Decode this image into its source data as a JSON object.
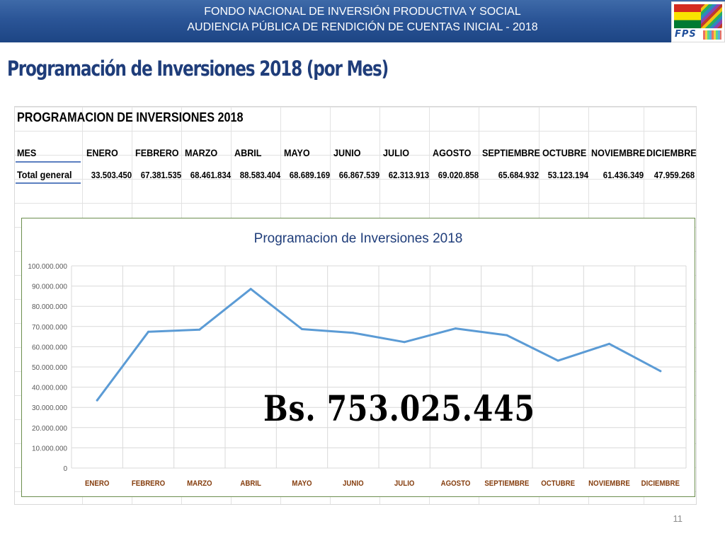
{
  "header": {
    "line1": "FONDO NACIONAL DE INVERSIÓN PRODUCTIVA Y SOCIAL",
    "line2": "AUDIENCIA PÚBLICA DE RENDICIÓN DE CUENTAS INICIAL - 2018",
    "logo_text": "FPS"
  },
  "slide_title": "Programación de Inversiones 2018 (por Mes)",
  "table": {
    "title": "PROGRAMACION DE INVERSIONES 2018",
    "row_label_header": "MES",
    "row_label_total": "Total general",
    "months": [
      "ENERO",
      "FEBRERO",
      "MARZO",
      "ABRIL",
      "MAYO",
      "JUNIO",
      "JULIO",
      "AGOSTO",
      "SEPTIEMBRE",
      "OCTUBRE",
      "NOVIEMBRE",
      "DICIEMBRE"
    ],
    "values": [
      "33.503.450",
      "67.381.535",
      "68.461.834",
      "88.583.404",
      "68.689.169",
      "66.867.539",
      "62.313.913",
      "69.020.858",
      "65.684.932",
      "53.123.194",
      "61.436.349",
      "47.959.268"
    ]
  },
  "chart_data": {
    "type": "line",
    "title": "Programacion  de Inversiones 2018",
    "categories": [
      "ENERO",
      "FEBRERO",
      "MARZO",
      "ABRIL",
      "MAYO",
      "JUNIO",
      "JULIO",
      "AGOSTO",
      "SEPTIEMBRE",
      "OCTUBRE",
      "NOVIEMBRE",
      "DICIEMBRE"
    ],
    "series": [
      {
        "values": [
          33503450,
          67381535,
          68461834,
          88583404,
          68689169,
          66867539,
          62313913,
          69020858,
          65684932,
          53123194,
          61436349,
          47959268
        ]
      }
    ],
    "ylim": [
      0,
      100000000
    ],
    "yticks": [
      0,
      10000000,
      20000000,
      30000000,
      40000000,
      50000000,
      60000000,
      70000000,
      80000000,
      90000000,
      100000000
    ],
    "ytick_labels": [
      "0",
      "10.000.000",
      "20.000.000",
      "30.000.000",
      "40.000.000",
      "50.000.000",
      "60.000.000",
      "70.000.000",
      "80.000.000",
      "90.000.000",
      "100.000.000"
    ],
    "grid": true,
    "legend": "none",
    "line_color": "#5b9bd5",
    "xtick_color": "#843c0c"
  },
  "total_annotation": "Bs. 753.025.445",
  "page_number": "11",
  "colors": {
    "banner": "#2b5597",
    "title_text": "#1f3d7a",
    "chart_border": "#6b8e4e"
  }
}
